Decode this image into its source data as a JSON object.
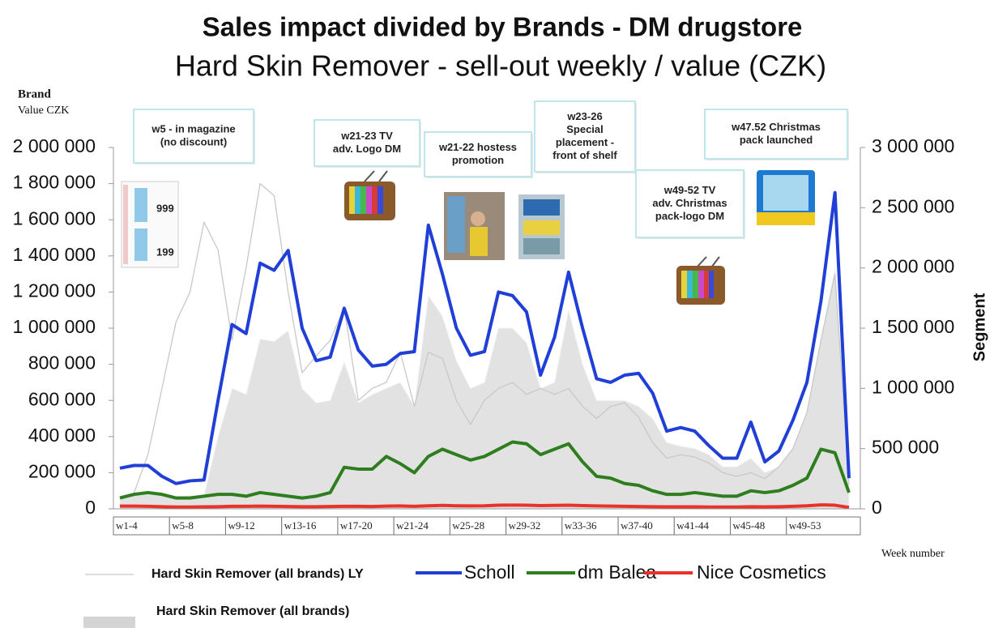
{
  "chart_data": {
    "type": "line",
    "title": "Sales impact divided by Brands - DM drugstore",
    "subtitle": "Hard Skin Remover - sell-out  weekly / value (CZK)",
    "y_axis_title": "Brand",
    "y_axis_unit": "Value CZK",
    "y2_axis_title": "Segment",
    "x_axis_title": "Week number",
    "categories": [
      "w1-4",
      null,
      null,
      null,
      "w5-8",
      null,
      null,
      null,
      "w9-12",
      null,
      null,
      null,
      "w13-16",
      null,
      null,
      null,
      "w17-20",
      null,
      null,
      null,
      "w21-24",
      null,
      null,
      null,
      "w25-28",
      null,
      null,
      null,
      "w29-32",
      null,
      null,
      null,
      "w33-36",
      null,
      null,
      null,
      "w37-40",
      null,
      null,
      null,
      "w41-44",
      null,
      null,
      null,
      "w45-48",
      null,
      null,
      null,
      "w49-53",
      null,
      null,
      null,
      null
    ],
    "ylim": [
      0,
      2000000
    ],
    "yticks": [
      0,
      {
        "value": 200000,
        "label": "200 000"
      },
      {
        "value": 400000,
        "label": "400 000"
      },
      {
        "value": 600000,
        "label": "600 000"
      },
      {
        "value": 800000,
        "label": "800 000"
      },
      {
        "value": 1000000,
        "label": "1 000 000"
      },
      {
        "value": 1200000,
        "label": "1 200 000"
      },
      {
        "value": 1400000,
        "label": "1 400 000"
      },
      {
        "value": 1600000,
        "label": "1 600 000"
      },
      {
        "value": 1800000,
        "label": "1 800 000"
      },
      {
        "value": 2000000,
        "label": "2 000 000"
      }
    ],
    "y2lim": [
      0,
      3000000
    ],
    "y2ticks": [
      0,
      {
        "value": 500000,
        "label": "500 000"
      },
      {
        "value": 1000000,
        "label": "1 000 000"
      },
      {
        "value": 1500000,
        "label": "1 500 000"
      },
      {
        "value": 2000000,
        "label": "2 000 000"
      },
      {
        "value": 2500000,
        "label": "2 500 000"
      },
      {
        "value": 3000000,
        "label": "3 000 000"
      }
    ],
    "series": [
      {
        "name": "Hard Skin Remover (all brands) LY",
        "type": "line",
        "axis": "y2",
        "color": "#c8c8c8",
        "values": [
          100000,
          130000,
          450000,
          1000000,
          1550000,
          1800000,
          2380000,
          2150000,
          1400000,
          2000000,
          2700000,
          2600000,
          1800000,
          1130000,
          1270000,
          1400000,
          1670000,
          900000,
          1000000,
          1050000,
          1300000,
          850000,
          1300000,
          1250000,
          900000,
          700000,
          900000,
          1000000,
          1050000,
          950000,
          1000000,
          950000,
          1000000,
          850000,
          750000,
          850000,
          880000,
          760000,
          550000,
          420000,
          450000,
          430000,
          380000,
          300000,
          270000,
          300000,
          250000,
          350000,
          500000,
          800000,
          1400000,
          1950000,
          200000
        ]
      },
      {
        "name": "Scholl",
        "type": "line",
        "axis": "y",
        "color": "#1f3fd6",
        "values": [
          225000,
          240000,
          240000,
          180000,
          140000,
          155000,
          160000,
          600000,
          1020000,
          970000,
          1360000,
          1320000,
          1430000,
          1000000,
          820000,
          840000,
          1110000,
          880000,
          790000,
          800000,
          860000,
          870000,
          1570000,
          1300000,
          1000000,
          850000,
          870000,
          1200000,
          1180000,
          1090000,
          740000,
          950000,
          1310000,
          1000000,
          720000,
          700000,
          740000,
          750000,
          640000,
          430000,
          450000,
          430000,
          350000,
          280000,
          280000,
          480000,
          260000,
          320000,
          490000,
          700000,
          1150000,
          1750000,
          170000
        ]
      },
      {
        "name": "dm Balea",
        "type": "line",
        "axis": "y",
        "color": "#2e7d1f",
        "values": [
          60000,
          80000,
          90000,
          80000,
          60000,
          60000,
          70000,
          80000,
          80000,
          70000,
          90000,
          80000,
          70000,
          60000,
          70000,
          90000,
          230000,
          220000,
          220000,
          290000,
          250000,
          200000,
          290000,
          330000,
          300000,
          270000,
          290000,
          330000,
          370000,
          360000,
          300000,
          330000,
          360000,
          260000,
          180000,
          170000,
          140000,
          130000,
          100000,
          80000,
          80000,
          90000,
          80000,
          70000,
          70000,
          100000,
          90000,
          100000,
          130000,
          170000,
          330000,
          310000,
          90000
        ]
      },
      {
        "name": "Nice Cosmetics",
        "type": "line",
        "axis": "y",
        "color": "#e8322a",
        "values": [
          15000,
          15000,
          14000,
          12000,
          10000,
          10000,
          11000,
          12000,
          14000,
          14000,
          15000,
          14000,
          13000,
          12000,
          12000,
          13000,
          14000,
          14000,
          13000,
          15000,
          16000,
          14000,
          17000,
          19000,
          17000,
          16000,
          17000,
          20000,
          21000,
          20000,
          18000,
          19000,
          20000,
          18000,
          16000,
          15000,
          14000,
          13000,
          12000,
          11000,
          11000,
          11000,
          10000,
          10000,
          10000,
          12000,
          11000,
          12000,
          14000,
          17000,
          22000,
          20000,
          8000
        ]
      },
      {
        "name": "Hard Skin Remover (all brands)",
        "type": "area",
        "axis": "y2",
        "color": "#e2e2e2",
        "values": [
          100000,
          120000,
          130000,
          120000,
          100000,
          110000,
          110000,
          600000,
          1000000,
          950000,
          1410000,
          1390000,
          1480000,
          1000000,
          880000,
          900000,
          1220000,
          880000,
          950000,
          1000000,
          1050000,
          850000,
          1770000,
          1600000,
          1230000,
          1000000,
          1050000,
          1500000,
          1500000,
          1380000,
          1000000,
          1050000,
          1650000,
          1200000,
          900000,
          900000,
          900000,
          850000,
          750000,
          550000,
          520000,
          500000,
          450000,
          350000,
          350000,
          420000,
          300000,
          350000,
          500000,
          800000,
          1400000,
          2000000,
          200000
        ]
      }
    ],
    "annotations": [
      {
        "lines": [
          "w5 - in magazine",
          "(no discount)"
        ]
      },
      {
        "lines": [
          "w21-23  TV",
          "adv. Logo DM"
        ]
      },
      {
        "lines": [
          "w21-22 hostess",
          "promotion"
        ]
      },
      {
        "lines": [
          "w23-26",
          "Special",
          "placement -",
          "front of shelf"
        ]
      },
      {
        "lines": [
          "w49-52  TV",
          "adv. Christmas",
          "pack-logo DM"
        ]
      },
      {
        "lines": [
          "w47.52 Christmas",
          "pack launched"
        ]
      }
    ]
  }
}
